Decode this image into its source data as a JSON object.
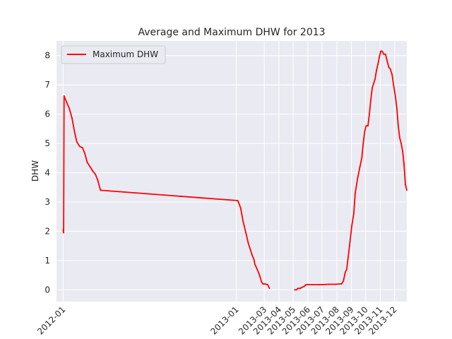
{
  "chart_data": {
    "type": "line",
    "title": "Average and Maximum DHW for 2013",
    "xlabel": "",
    "ylabel": "DHW",
    "x_type": "date",
    "xlim": [
      "2011-12-18",
      "2013-12-27"
    ],
    "ylim": [
      -0.4,
      8.5
    ],
    "x_ticks": [
      "2012-01-01",
      "2013-01-01",
      "2013-03-01",
      "2013-04-01",
      "2013-05-01",
      "2013-06-01",
      "2013-07-01",
      "2013-08-01",
      "2013-09-01",
      "2013-10-01",
      "2013-11-01",
      "2013-12-01"
    ],
    "x_tick_labels": [
      "2012-01",
      "2013-01",
      "2013-03",
      "2013-04",
      "2013-05",
      "2013-06",
      "2013-07",
      "2013-08",
      "2013-09",
      "2013-10",
      "2013-11",
      "2013-12"
    ],
    "y_ticks": [
      0,
      1,
      2,
      3,
      4,
      5,
      6,
      7,
      8
    ],
    "y_tick_labels": [
      "0",
      "1",
      "2",
      "3",
      "4",
      "5",
      "6",
      "7",
      "8"
    ],
    "grid": true,
    "legend_position": "top-left",
    "background": "#eaeaf2",
    "grid_color": "#ffffff",
    "series": [
      {
        "name": "Maximum DHW",
        "color": "#ff0000",
        "segments": [
          [
            [
              "2012-01-01",
              2.05
            ],
            [
              "2012-01-02",
              1.95
            ],
            [
              "2012-01-03",
              6.62
            ],
            [
              "2012-01-08",
              6.42
            ],
            [
              "2012-01-14",
              6.2
            ],
            [
              "2012-01-20",
              5.85
            ],
            [
              "2012-01-25",
              5.4
            ],
            [
              "2012-01-30",
              5.05
            ],
            [
              "2012-02-05",
              4.9
            ],
            [
              "2012-02-11",
              4.85
            ],
            [
              "2012-02-16",
              4.65
            ],
            [
              "2012-02-21",
              4.35
            ],
            [
              "2012-02-27",
              4.2
            ],
            [
              "2012-03-04",
              4.05
            ],
            [
              "2012-03-09",
              3.95
            ],
            [
              "2012-03-14",
              3.75
            ],
            [
              "2012-03-20",
              3.4
            ],
            [
              "2013-01-04",
              3.05
            ],
            [
              "2013-01-10",
              2.8
            ],
            [
              "2013-01-15",
              2.35
            ],
            [
              "2013-01-21",
              1.95
            ],
            [
              "2013-01-26",
              1.6
            ],
            [
              "2013-01-31",
              1.35
            ],
            [
              "2013-02-04",
              1.15
            ],
            [
              "2013-02-07",
              1.05
            ],
            [
              "2013-02-09",
              0.88
            ],
            [
              "2013-02-14",
              0.7
            ],
            [
              "2013-02-19",
              0.5
            ],
            [
              "2013-02-23",
              0.28
            ],
            [
              "2013-02-26",
              0.2
            ],
            [
              "2013-03-03",
              0.2
            ],
            [
              "2013-03-08",
              0.18
            ],
            [
              "2013-03-12",
              0.05
            ]
          ],
          [
            [
              "2013-05-04",
              0.0
            ],
            [
              "2013-05-08",
              0.0
            ],
            [
              "2013-05-11",
              0.05
            ],
            [
              "2013-05-16",
              0.05
            ],
            [
              "2013-05-21",
              0.1
            ],
            [
              "2013-05-25",
              0.12
            ],
            [
              "2013-05-28",
              0.18
            ],
            [
              "2013-06-10",
              0.18
            ],
            [
              "2013-06-25",
              0.18
            ],
            [
              "2013-07-01",
              0.18
            ],
            [
              "2013-07-15",
              0.19
            ],
            [
              "2013-07-30",
              0.19
            ],
            [
              "2013-08-05",
              0.2
            ],
            [
              "2013-08-11",
              0.2
            ],
            [
              "2013-08-15",
              0.3
            ],
            [
              "2013-08-19",
              0.6
            ],
            [
              "2013-08-22",
              0.7
            ],
            [
              "2013-08-28",
              1.5
            ],
            [
              "2013-09-02",
              2.2
            ],
            [
              "2013-09-06",
              2.6
            ],
            [
              "2013-09-09",
              3.3
            ],
            [
              "2013-09-14",
              3.8
            ],
            [
              "2013-09-19",
              4.2
            ],
            [
              "2013-09-23",
              4.5
            ],
            [
              "2013-09-26",
              5.0
            ],
            [
              "2013-09-29",
              5.4
            ],
            [
              "2013-10-02",
              5.6
            ],
            [
              "2013-10-06",
              5.6
            ],
            [
              "2013-10-09",
              6.0
            ],
            [
              "2013-10-12",
              6.5
            ],
            [
              "2013-10-15",
              6.9
            ],
            [
              "2013-10-18",
              7.05
            ],
            [
              "2013-10-21",
              7.2
            ],
            [
              "2013-10-24",
              7.5
            ],
            [
              "2013-10-27",
              7.7
            ],
            [
              "2013-10-30",
              7.95
            ],
            [
              "2013-11-02",
              8.15
            ],
            [
              "2013-11-05",
              8.15
            ],
            [
              "2013-11-08",
              8.05
            ],
            [
              "2013-11-12",
              8.05
            ],
            [
              "2013-11-15",
              7.85
            ],
            [
              "2013-11-19",
              7.6
            ],
            [
              "2013-11-22",
              7.55
            ],
            [
              "2013-11-26",
              7.35
            ],
            [
              "2013-11-29",
              7.0
            ],
            [
              "2013-12-03",
              6.6
            ],
            [
              "2013-12-06",
              6.2
            ],
            [
              "2013-12-09",
              5.6
            ],
            [
              "2013-12-12",
              5.2
            ],
            [
              "2013-12-15",
              5.0
            ],
            [
              "2013-12-18",
              4.75
            ],
            [
              "2013-12-21",
              4.3
            ],
            [
              "2013-12-24",
              3.6
            ],
            [
              "2013-12-27",
              3.4
            ]
          ]
        ]
      }
    ]
  }
}
